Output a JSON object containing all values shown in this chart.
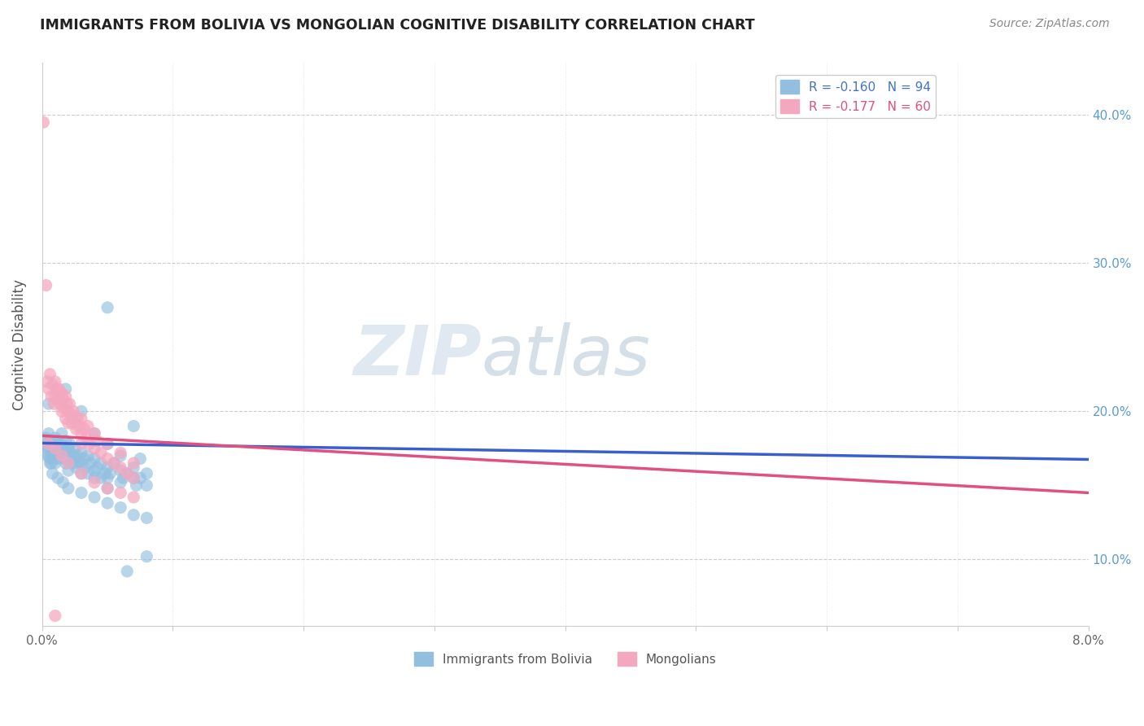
{
  "title": "IMMIGRANTS FROM BOLIVIA VS MONGOLIAN COGNITIVE DISABILITY CORRELATION CHART",
  "source": "Source: ZipAtlas.com",
  "ylabel": "Cognitive Disability",
  "yticks": [
    0.1,
    0.2,
    0.3,
    0.4
  ],
  "ytick_labels": [
    "10.0%",
    "20.0%",
    "30.0%",
    "40.0%"
  ],
  "xlim": [
    0.0,
    0.08
  ],
  "ylim": [
    0.055,
    0.435
  ],
  "legend_label1": "R = -0.160   N = 94",
  "legend_label2": "R = -0.177   N = 60",
  "bottom_label1": "Immigrants from Bolivia",
  "bottom_label2": "Mongolians",
  "series1_color": "#92bfe0",
  "series2_color": "#f4a8c0",
  "trendline1_color": "#3a5fcd",
  "trendline2_color": "#e05080",
  "trendline1": [
    0.1785,
    0.1675
  ],
  "trendline2": [
    0.1835,
    0.145
  ],
  "watermark": "ZIPatlas",
  "series1": [
    [
      0.0002,
      0.178
    ],
    [
      0.0003,
      0.182
    ],
    [
      0.0004,
      0.17
    ],
    [
      0.0005,
      0.175
    ],
    [
      0.0005,
      0.185
    ],
    [
      0.0006,
      0.168
    ],
    [
      0.0006,
      0.18
    ],
    [
      0.0007,
      0.172
    ],
    [
      0.0007,
      0.165
    ],
    [
      0.0008,
      0.178
    ],
    [
      0.0008,
      0.17
    ],
    [
      0.0009,
      0.175
    ],
    [
      0.0009,
      0.168
    ],
    [
      0.001,
      0.182
    ],
    [
      0.001,
      0.172
    ],
    [
      0.001,
      0.165
    ],
    [
      0.0011,
      0.175
    ],
    [
      0.0012,
      0.18
    ],
    [
      0.0012,
      0.168
    ],
    [
      0.0013,
      0.172
    ],
    [
      0.0014,
      0.178
    ],
    [
      0.0015,
      0.185
    ],
    [
      0.0015,
      0.17
    ],
    [
      0.0016,
      0.175
    ],
    [
      0.0017,
      0.168
    ],
    [
      0.0018,
      0.18
    ],
    [
      0.0018,
      0.165
    ],
    [
      0.0019,
      0.172
    ],
    [
      0.002,
      0.175
    ],
    [
      0.002,
      0.168
    ],
    [
      0.002,
      0.16
    ],
    [
      0.0021,
      0.178
    ],
    [
      0.0022,
      0.172
    ],
    [
      0.0023,
      0.165
    ],
    [
      0.0024,
      0.17
    ],
    [
      0.0025,
      0.175
    ],
    [
      0.0025,
      0.168
    ],
    [
      0.0026,
      0.162
    ],
    [
      0.0027,
      0.17
    ],
    [
      0.0028,
      0.165
    ],
    [
      0.003,
      0.172
    ],
    [
      0.003,
      0.165
    ],
    [
      0.003,
      0.158
    ],
    [
      0.0032,
      0.168
    ],
    [
      0.0033,
      0.162
    ],
    [
      0.0035,
      0.17
    ],
    [
      0.0035,
      0.158
    ],
    [
      0.0037,
      0.165
    ],
    [
      0.004,
      0.168
    ],
    [
      0.004,
      0.16
    ],
    [
      0.004,
      0.155
    ],
    [
      0.0042,
      0.162
    ],
    [
      0.0045,
      0.165
    ],
    [
      0.0045,
      0.155
    ],
    [
      0.0048,
      0.158
    ],
    [
      0.005,
      0.162
    ],
    [
      0.005,
      0.155
    ],
    [
      0.005,
      0.148
    ],
    [
      0.0052,
      0.158
    ],
    [
      0.0055,
      0.165
    ],
    [
      0.006,
      0.16
    ],
    [
      0.006,
      0.152
    ],
    [
      0.0062,
      0.155
    ],
    [
      0.0065,
      0.158
    ],
    [
      0.007,
      0.162
    ],
    [
      0.007,
      0.155
    ],
    [
      0.0072,
      0.15
    ],
    [
      0.0075,
      0.155
    ],
    [
      0.008,
      0.158
    ],
    [
      0.008,
      0.15
    ],
    [
      0.0018,
      0.215
    ],
    [
      0.003,
      0.2
    ],
    [
      0.005,
      0.27
    ],
    [
      0.0005,
      0.205
    ],
    [
      0.0008,
      0.158
    ],
    [
      0.0012,
      0.155
    ],
    [
      0.0016,
      0.152
    ],
    [
      0.002,
      0.148
    ],
    [
      0.003,
      0.145
    ],
    [
      0.004,
      0.142
    ],
    [
      0.005,
      0.138
    ],
    [
      0.006,
      0.135
    ],
    [
      0.007,
      0.13
    ],
    [
      0.008,
      0.128
    ],
    [
      0.0075,
      0.168
    ],
    [
      0.006,
      0.17
    ],
    [
      0.008,
      0.102
    ],
    [
      0.0065,
      0.092
    ],
    [
      0.0003,
      0.172
    ],
    [
      0.0006,
      0.165
    ],
    [
      0.0009,
      0.175
    ],
    [
      0.004,
      0.185
    ],
    [
      0.005,
      0.178
    ],
    [
      0.007,
      0.19
    ]
  ],
  "series2": [
    [
      0.0001,
      0.395
    ],
    [
      0.0003,
      0.285
    ],
    [
      0.0004,
      0.22
    ],
    [
      0.0005,
      0.215
    ],
    [
      0.0006,
      0.225
    ],
    [
      0.0007,
      0.21
    ],
    [
      0.0008,
      0.218
    ],
    [
      0.0009,
      0.205
    ],
    [
      0.001,
      0.22
    ],
    [
      0.001,
      0.21
    ],
    [
      0.0011,
      0.215
    ],
    [
      0.0012,
      0.208
    ],
    [
      0.0013,
      0.215
    ],
    [
      0.0014,
      0.205
    ],
    [
      0.0015,
      0.212
    ],
    [
      0.0015,
      0.2
    ],
    [
      0.0016,
      0.208
    ],
    [
      0.0017,
      0.202
    ],
    [
      0.0018,
      0.21
    ],
    [
      0.0018,
      0.195
    ],
    [
      0.0019,
      0.205
    ],
    [
      0.002,
      0.2
    ],
    [
      0.002,
      0.192
    ],
    [
      0.0021,
      0.205
    ],
    [
      0.0022,
      0.198
    ],
    [
      0.0023,
      0.192
    ],
    [
      0.0024,
      0.2
    ],
    [
      0.0025,
      0.195
    ],
    [
      0.0026,
      0.188
    ],
    [
      0.0027,
      0.195
    ],
    [
      0.0028,
      0.19
    ],
    [
      0.003,
      0.195
    ],
    [
      0.003,
      0.185
    ],
    [
      0.003,
      0.178
    ],
    [
      0.0032,
      0.188
    ],
    [
      0.0034,
      0.182
    ],
    [
      0.0035,
      0.19
    ],
    [
      0.0036,
      0.178
    ],
    [
      0.004,
      0.185
    ],
    [
      0.004,
      0.175
    ],
    [
      0.0042,
      0.18
    ],
    [
      0.0045,
      0.172
    ],
    [
      0.005,
      0.178
    ],
    [
      0.005,
      0.168
    ],
    [
      0.0055,
      0.165
    ],
    [
      0.006,
      0.162
    ],
    [
      0.006,
      0.172
    ],
    [
      0.0065,
      0.158
    ],
    [
      0.007,
      0.165
    ],
    [
      0.007,
      0.155
    ],
    [
      0.0005,
      0.178
    ],
    [
      0.001,
      0.175
    ],
    [
      0.0015,
      0.17
    ],
    [
      0.002,
      0.165
    ],
    [
      0.003,
      0.158
    ],
    [
      0.004,
      0.152
    ],
    [
      0.005,
      0.148
    ],
    [
      0.006,
      0.145
    ],
    [
      0.007,
      0.142
    ],
    [
      0.001,
      0.062
    ]
  ]
}
